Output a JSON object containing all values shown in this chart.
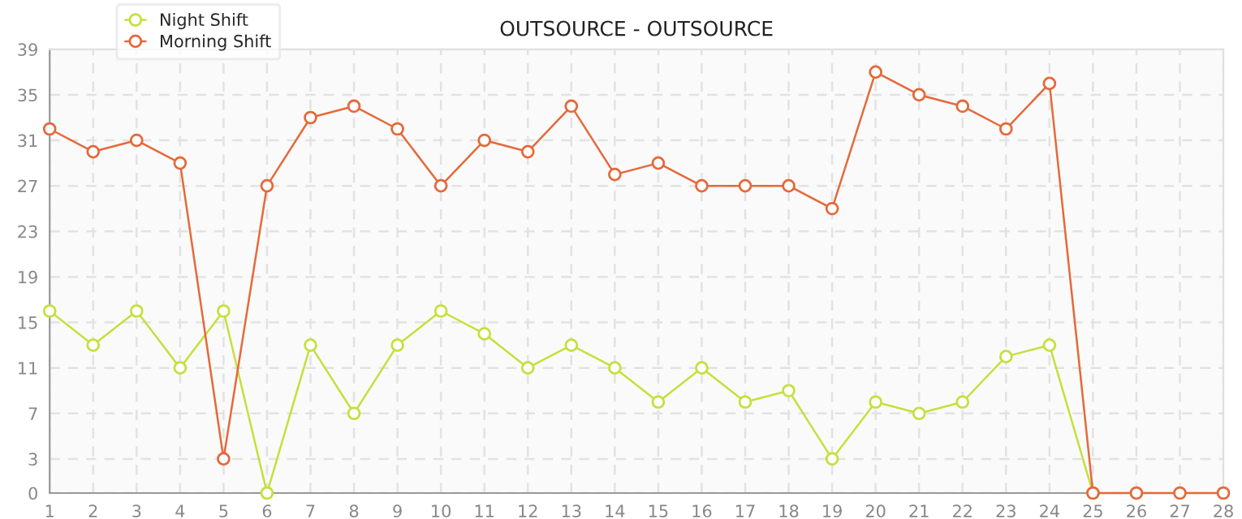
{
  "chart_data": {
    "type": "line",
    "title": "OUTSOURCE - OUTSOURCE",
    "x": [
      1,
      2,
      3,
      4,
      5,
      6,
      7,
      8,
      9,
      10,
      11,
      12,
      13,
      14,
      15,
      16,
      17,
      18,
      19,
      20,
      21,
      22,
      23,
      24,
      25,
      26,
      27,
      28
    ],
    "series": [
      {
        "name": "Night Shift",
        "color": "#c5e03c",
        "values": [
          16,
          13,
          16,
          11,
          16,
          0,
          13,
          7,
          13,
          16,
          14,
          11,
          13,
          11,
          8,
          11,
          8,
          9,
          3,
          8,
          7,
          8,
          12,
          13,
          0,
          null,
          null,
          null
        ]
      },
      {
        "name": "Morning Shift",
        "color": "#e5693a",
        "values": [
          32,
          30,
          31,
          29,
          3,
          27,
          33,
          34,
          32,
          27,
          31,
          30,
          34,
          28,
          29,
          27,
          27,
          27,
          25,
          37,
          35,
          34,
          32,
          36,
          0,
          0,
          0,
          0
        ]
      }
    ],
    "xlim": [
      1,
      28
    ],
    "xticks": [
      1,
      2,
      3,
      4,
      5,
      6,
      7,
      8,
      9,
      10,
      11,
      12,
      13,
      14,
      15,
      16,
      17,
      18,
      19,
      20,
      21,
      22,
      23,
      24,
      25,
      26,
      27,
      28
    ],
    "ylim": [
      0,
      39
    ],
    "yticks": [
      0,
      3,
      7,
      11,
      15,
      19,
      23,
      27,
      31,
      35,
      39
    ],
    "grid": true,
    "legend": "top left",
    "marker": "circle",
    "line_style": "solid"
  }
}
